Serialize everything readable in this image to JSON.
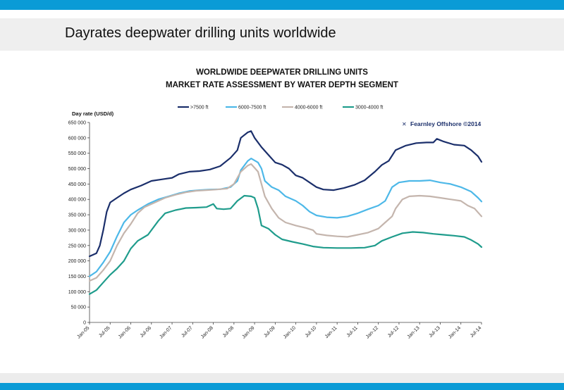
{
  "slide": {
    "title": "Dayrates deepwater drilling units worldwide",
    "accent_color": "#0a9bd6"
  },
  "chart_data": {
    "type": "line",
    "title": "WORLDWIDE DEEPWATER DRILLING UNITS",
    "subtitle": "MARKET RATE ASSESSMENT BY WATER DEPTH SEGMENT",
    "ylabel": "Day rate (USD/d)",
    "xlabel": "",
    "ylim": [
      0,
      650000
    ],
    "y_ticks": [
      "0",
      "50 000",
      "100 000",
      "150 000",
      "200 000",
      "250 000",
      "300 000",
      "350 000",
      "400 000",
      "450 000",
      "500 000",
      "550 000",
      "600 000",
      "650 000"
    ],
    "x_ticks": [
      "Jan-05",
      "Jul-05",
      "Jan-06",
      "Jul-06",
      "Jan-07",
      "Jul-07",
      "Jan-08",
      "Jul-08",
      "Jan-09",
      "Jul-09",
      "Jan-10",
      "Jul-10",
      "Jan-11",
      "Jul-11",
      "Jan-12",
      "Jul-12",
      "Jan-13",
      "Jul-13",
      "Jan-14",
      "Jul-14"
    ],
    "grid": false,
    "legend_position": "top",
    "watermark": "Fearnley Offshore ©2014",
    "series": [
      {
        "name": ">7500 ft",
        "color": "#1b2f6b",
        "points": [
          [
            "2005-01",
            215000
          ],
          [
            "2005-03",
            225000
          ],
          [
            "2005-04",
            250000
          ],
          [
            "2005-05",
            300000
          ],
          [
            "2005-06",
            360000
          ],
          [
            "2005-07",
            390000
          ],
          [
            "2005-09",
            405000
          ],
          [
            "2005-11",
            420000
          ],
          [
            "2006-01",
            432000
          ],
          [
            "2006-04",
            445000
          ],
          [
            "2006-07",
            460000
          ],
          [
            "2006-10",
            465000
          ],
          [
            "2007-01",
            470000
          ],
          [
            "2007-03",
            482000
          ],
          [
            "2007-06",
            490000
          ],
          [
            "2007-09",
            492000
          ],
          [
            "2007-12",
            497000
          ],
          [
            "2008-03",
            508000
          ],
          [
            "2008-06",
            535000
          ],
          [
            "2008-08",
            560000
          ],
          [
            "2008-09",
            600000
          ],
          [
            "2008-11",
            618000
          ],
          [
            "2008-12",
            622000
          ],
          [
            "2009-01",
            600000
          ],
          [
            "2009-03",
            570000
          ],
          [
            "2009-05",
            545000
          ],
          [
            "2009-07",
            520000
          ],
          [
            "2009-09",
            513000
          ],
          [
            "2009-11",
            500000
          ],
          [
            "2010-01",
            478000
          ],
          [
            "2010-03",
            470000
          ],
          [
            "2010-05",
            455000
          ],
          [
            "2010-07",
            440000
          ],
          [
            "2010-09",
            432000
          ],
          [
            "2010-12",
            430000
          ],
          [
            "2011-03",
            437000
          ],
          [
            "2011-06",
            447000
          ],
          [
            "2011-09",
            462000
          ],
          [
            "2011-12",
            490000
          ],
          [
            "2012-02",
            512000
          ],
          [
            "2012-04",
            525000
          ],
          [
            "2012-06",
            560000
          ],
          [
            "2012-09",
            575000
          ],
          [
            "2012-12",
            583000
          ],
          [
            "2013-03",
            585000
          ],
          [
            "2013-05",
            585000
          ],
          [
            "2013-06",
            597000
          ],
          [
            "2013-08",
            588000
          ],
          [
            "2013-11",
            578000
          ],
          [
            "2014-02",
            575000
          ],
          [
            "2014-04",
            560000
          ],
          [
            "2014-06",
            540000
          ],
          [
            "2014-07",
            522000
          ]
        ]
      },
      {
        "name": "6000-7500 ft",
        "color": "#4db8e8",
        "points": [
          [
            "2005-01",
            150000
          ],
          [
            "2005-03",
            165000
          ],
          [
            "2005-05",
            195000
          ],
          [
            "2005-07",
            230000
          ],
          [
            "2005-09",
            280000
          ],
          [
            "2005-11",
            325000
          ],
          [
            "2006-01",
            350000
          ],
          [
            "2006-03",
            365000
          ],
          [
            "2006-06",
            385000
          ],
          [
            "2006-09",
            400000
          ],
          [
            "2006-12",
            410000
          ],
          [
            "2007-03",
            420000
          ],
          [
            "2007-06",
            427000
          ],
          [
            "2007-09",
            430000
          ],
          [
            "2007-12",
            432000
          ],
          [
            "2008-03",
            433000
          ],
          [
            "2008-06",
            440000
          ],
          [
            "2008-08",
            460000
          ],
          [
            "2008-09",
            495000
          ],
          [
            "2008-11",
            525000
          ],
          [
            "2008-12",
            533000
          ],
          [
            "2009-02",
            520000
          ],
          [
            "2009-03",
            500000
          ],
          [
            "2009-04",
            460000
          ],
          [
            "2009-06",
            440000
          ],
          [
            "2009-08",
            430000
          ],
          [
            "2009-10",
            410000
          ],
          [
            "2010-01",
            395000
          ],
          [
            "2010-03",
            380000
          ],
          [
            "2010-05",
            360000
          ],
          [
            "2010-07",
            348000
          ],
          [
            "2010-10",
            342000
          ],
          [
            "2011-01",
            340000
          ],
          [
            "2011-04",
            345000
          ],
          [
            "2011-07",
            355000
          ],
          [
            "2011-10",
            368000
          ],
          [
            "2012-01",
            380000
          ],
          [
            "2012-03",
            395000
          ],
          [
            "2012-05",
            440000
          ],
          [
            "2012-07",
            455000
          ],
          [
            "2012-10",
            460000
          ],
          [
            "2013-01",
            460000
          ],
          [
            "2013-04",
            462000
          ],
          [
            "2013-07",
            455000
          ],
          [
            "2013-10",
            450000
          ],
          [
            "2014-01",
            440000
          ],
          [
            "2014-04",
            425000
          ],
          [
            "2014-06",
            405000
          ],
          [
            "2014-07",
            393000
          ]
        ]
      },
      {
        "name": "4000-6000 ft",
        "color": "#c4b5ad",
        "points": [
          [
            "2005-01",
            135000
          ],
          [
            "2005-03",
            145000
          ],
          [
            "2005-05",
            170000
          ],
          [
            "2005-07",
            200000
          ],
          [
            "2005-09",
            250000
          ],
          [
            "2005-11",
            290000
          ],
          [
            "2006-01",
            320000
          ],
          [
            "2006-03",
            355000
          ],
          [
            "2006-05",
            375000
          ],
          [
            "2006-08",
            390000
          ],
          [
            "2006-11",
            405000
          ],
          [
            "2007-02",
            415000
          ],
          [
            "2007-05",
            423000
          ],
          [
            "2007-08",
            428000
          ],
          [
            "2007-11",
            430000
          ],
          [
            "2008-02",
            432000
          ],
          [
            "2008-05",
            435000
          ],
          [
            "2008-07",
            450000
          ],
          [
            "2008-09",
            490000
          ],
          [
            "2008-11",
            510000
          ],
          [
            "2008-12",
            515000
          ],
          [
            "2009-02",
            490000
          ],
          [
            "2009-03",
            450000
          ],
          [
            "2009-04",
            410000
          ],
          [
            "2009-06",
            370000
          ],
          [
            "2009-08",
            340000
          ],
          [
            "2009-10",
            325000
          ],
          [
            "2010-01",
            315000
          ],
          [
            "2010-04",
            307000
          ],
          [
            "2010-06",
            300000
          ],
          [
            "2010-07",
            288000
          ],
          [
            "2010-10",
            283000
          ],
          [
            "2011-01",
            280000
          ],
          [
            "2011-04",
            278000
          ],
          [
            "2011-07",
            285000
          ],
          [
            "2011-10",
            292000
          ],
          [
            "2012-01",
            305000
          ],
          [
            "2012-03",
            325000
          ],
          [
            "2012-05",
            345000
          ],
          [
            "2012-06",
            370000
          ],
          [
            "2012-08",
            400000
          ],
          [
            "2012-10",
            410000
          ],
          [
            "2013-01",
            412000
          ],
          [
            "2013-04",
            410000
          ],
          [
            "2013-07",
            405000
          ],
          [
            "2013-10",
            400000
          ],
          [
            "2014-01",
            395000
          ],
          [
            "2014-03",
            380000
          ],
          [
            "2014-05",
            370000
          ],
          [
            "2014-07",
            345000
          ]
        ]
      },
      {
        "name": "3000-4000 ft",
        "color": "#1f9c8c",
        "points": [
          [
            "2005-01",
            92000
          ],
          [
            "2005-03",
            105000
          ],
          [
            "2005-05",
            130000
          ],
          [
            "2005-07",
            155000
          ],
          [
            "2005-09",
            175000
          ],
          [
            "2005-11",
            200000
          ],
          [
            "2006-01",
            240000
          ],
          [
            "2006-03",
            265000
          ],
          [
            "2006-06",
            285000
          ],
          [
            "2006-09",
            330000
          ],
          [
            "2006-11",
            355000
          ],
          [
            "2007-02",
            365000
          ],
          [
            "2007-05",
            372000
          ],
          [
            "2007-08",
            373000
          ],
          [
            "2007-11",
            375000
          ],
          [
            "2008-01",
            385000
          ],
          [
            "2008-02",
            370000
          ],
          [
            "2008-04",
            368000
          ],
          [
            "2008-06",
            370000
          ],
          [
            "2008-08",
            395000
          ],
          [
            "2008-10",
            412000
          ],
          [
            "2008-12",
            410000
          ],
          [
            "2009-01",
            405000
          ],
          [
            "2009-02",
            370000
          ],
          [
            "2009-03",
            315000
          ],
          [
            "2009-05",
            305000
          ],
          [
            "2009-07",
            285000
          ],
          [
            "2009-09",
            270000
          ],
          [
            "2009-12",
            262000
          ],
          [
            "2010-03",
            255000
          ],
          [
            "2010-06",
            247000
          ],
          [
            "2010-09",
            243000
          ],
          [
            "2011-01",
            242000
          ],
          [
            "2011-05",
            242000
          ],
          [
            "2011-09",
            243000
          ],
          [
            "2011-12",
            250000
          ],
          [
            "2012-02",
            265000
          ],
          [
            "2012-05",
            278000
          ],
          [
            "2012-08",
            290000
          ],
          [
            "2012-11",
            294000
          ],
          [
            "2013-02",
            292000
          ],
          [
            "2013-05",
            288000
          ],
          [
            "2013-08",
            285000
          ],
          [
            "2013-11",
            282000
          ],
          [
            "2014-02",
            278000
          ],
          [
            "2014-04",
            268000
          ],
          [
            "2014-06",
            255000
          ],
          [
            "2014-07",
            245000
          ]
        ]
      }
    ]
  }
}
